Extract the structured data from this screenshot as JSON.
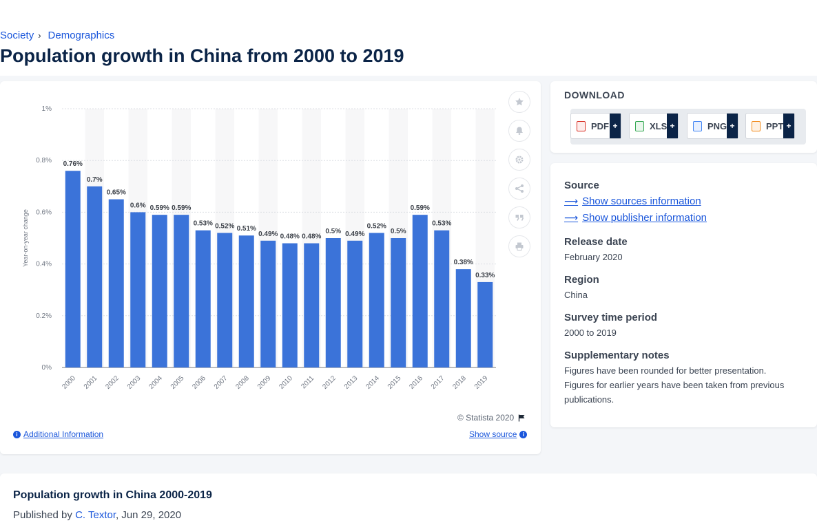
{
  "breadcrumb": {
    "items": [
      "Society",
      "Demographics"
    ],
    "separator": "›"
  },
  "page_title": "Population growth in China from 2000 to 2019",
  "chart_tools": [
    "star-icon",
    "bell-icon",
    "gear-icon",
    "share-icon",
    "quote-icon",
    "print-icon"
  ],
  "chart_footer": {
    "copyright": "© Statista 2020",
    "additional_info": "Additional Information",
    "show_source": "Show source"
  },
  "download": {
    "title": "DOWNLOAD",
    "buttons": [
      {
        "label": "PDF",
        "plus": "+",
        "color": "#d93025"
      },
      {
        "label": "XLS",
        "plus": "+",
        "color": "#34a853"
      },
      {
        "label": "PNG",
        "plus": "+",
        "color": "#4285f4"
      },
      {
        "label": "PPT",
        "plus": "+",
        "color": "#f28b1c"
      }
    ]
  },
  "meta": {
    "source_heading": "Source",
    "sources_link": "Show sources information",
    "publisher_link": "Show publisher information",
    "release_heading": "Release date",
    "release_value": "February 2020",
    "region_heading": "Region",
    "region_value": "China",
    "period_heading": "Survey time period",
    "period_value": "2000 to 2019",
    "notes_heading": "Supplementary notes",
    "notes_value": "Figures have been rounded for better presentation. Figures for earlier years have been taken from previous publications."
  },
  "bottom": {
    "title": "Population growth in China 2000-2019",
    "published_prefix": "Published by",
    "author": "C. Textor",
    "date": ", Jun 29, 2020"
  },
  "colors": {
    "bar": "#3b73d9",
    "accent": "#1a56db",
    "title": "#0b2447"
  },
  "chart_data": {
    "type": "bar",
    "categories": [
      "2000",
      "2001",
      "2002",
      "2003",
      "2004",
      "2005",
      "2006",
      "2007",
      "2008",
      "2009",
      "2010",
      "2011",
      "2012",
      "2013",
      "2014",
      "2015",
      "2016",
      "2017",
      "2018",
      "2019"
    ],
    "values": [
      0.76,
      0.7,
      0.65,
      0.6,
      0.59,
      0.59,
      0.53,
      0.52,
      0.51,
      0.49,
      0.48,
      0.48,
      0.5,
      0.49,
      0.52,
      0.5,
      0.59,
      0.53,
      0.38,
      0.33
    ],
    "value_labels": [
      "0.76%",
      "0.7%",
      "0.65%",
      "0.6%",
      "0.59%",
      "0.59%",
      "0.53%",
      "0.52%",
      "0.51%",
      "0.49%",
      "0.48%",
      "0.48%",
      "0.5%",
      "0.49%",
      "0.52%",
      "0.5%",
      "0.59%",
      "0.53%",
      "0.38%",
      "0.33%"
    ],
    "ylabel": "Year-on-year change",
    "ylim": [
      0,
      1
    ],
    "yticks": [
      0,
      0.2,
      0.4,
      0.6,
      0.8,
      1
    ],
    "ytick_labels": [
      "0%",
      "0.2%",
      "0.4%",
      "0.6%",
      "0.8%",
      "1%"
    ],
    "grid": true,
    "legend": false
  }
}
